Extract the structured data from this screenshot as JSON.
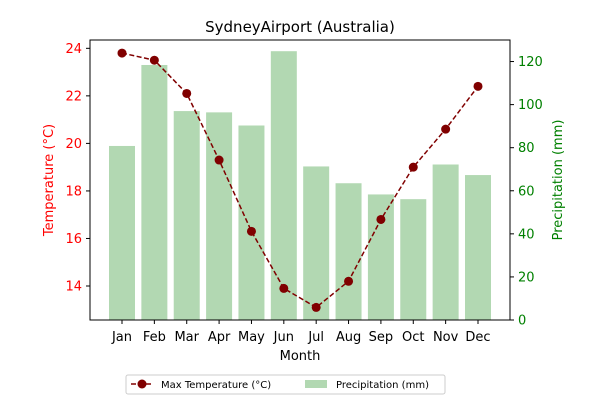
{
  "chart_data": {
    "type": "bar+line",
    "title": "SydneyAirport (Australia)",
    "xlabel": "Month",
    "ylabel_left": "Temperature (°C)",
    "ylabel_right": "Precipitation (mm)",
    "categories": [
      "Jan",
      "Feb",
      "Mar",
      "Apr",
      "May",
      "Jun",
      "Jul",
      "Aug",
      "Sep",
      "Oct",
      "Nov",
      "Dec"
    ],
    "ylim_left": [
      12.57,
      24.35
    ],
    "ylim_right": [
      0,
      130
    ],
    "yticks_left": [
      14,
      16,
      18,
      20,
      22,
      24
    ],
    "yticks_right": [
      0,
      20,
      40,
      60,
      80,
      100,
      120
    ],
    "grid": false,
    "legend_position": "bottom-center",
    "series": [
      {
        "name": "Max Temperature (°C)",
        "type": "line",
        "axis": "left",
        "values": [
          23.8,
          23.5,
          22.1,
          19.3,
          16.3,
          13.9,
          13.1,
          14.2,
          16.8,
          19.0,
          20.6,
          22.4
        ]
      },
      {
        "name": "Precipitation (mm)",
        "type": "bar",
        "axis": "right",
        "values": [
          80.8,
          118.4,
          97.0,
          96.4,
          90.3,
          124.8,
          71.3,
          63.5,
          58.3,
          56.1,
          72.2,
          67.3
        ]
      }
    ],
    "colors": {
      "line": "#800000",
      "bar": "#b2d8b2",
      "left_axis": "#ff0000",
      "right_axis": "#008000"
    }
  }
}
